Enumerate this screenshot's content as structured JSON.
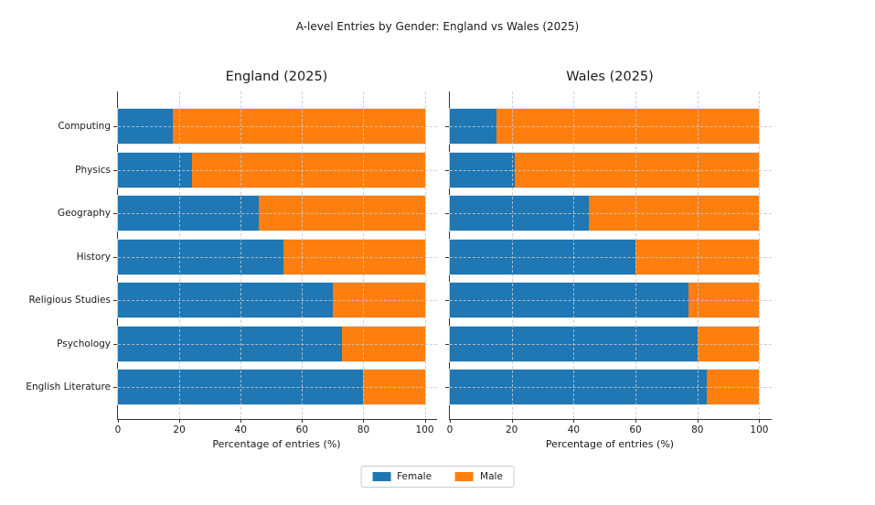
{
  "figure": {
    "title": "A-level Entries by Gender: England vs Wales (2025)",
    "background": "#ffffff",
    "text_color": "#1a1a1a"
  },
  "legend": {
    "position": "bottom-center",
    "items": [
      {
        "label": "Female",
        "color": "#1f77b4"
      },
      {
        "label": "Male",
        "color": "#ff7f0e"
      }
    ]
  },
  "chart_data": [
    {
      "type": "bar",
      "orientation": "horizontal",
      "stacked": true,
      "title": "England (2025)",
      "xlabel": "Percentage of entries (%)",
      "categories": [
        "Computing",
        "Physics",
        "Geography",
        "History",
        "Religious Studies",
        "Psychology",
        "English Literature"
      ],
      "categories_order": "top-to-bottom",
      "series": [
        {
          "name": "Female",
          "color": "#1f77b4",
          "values": [
            18,
            24,
            46,
            54,
            70,
            73,
            80
          ]
        },
        {
          "name": "Male",
          "color": "#ff7f0e",
          "values": [
            82,
            76,
            54,
            46,
            30,
            27,
            20
          ]
        }
      ],
      "xticks": [
        0,
        20,
        40,
        60,
        80,
        100
      ],
      "xlim": [
        0,
        104
      ],
      "grid": "dashed-both-axes",
      "y_tick_labels_visible": true
    },
    {
      "type": "bar",
      "orientation": "horizontal",
      "stacked": true,
      "title": "Wales (2025)",
      "xlabel": "Percentage of entries (%)",
      "categories": [
        "Computing",
        "Physics",
        "Geography",
        "History",
        "Religious Studies",
        "Psychology",
        "English Literature"
      ],
      "categories_order": "top-to-bottom",
      "series": [
        {
          "name": "Female",
          "color": "#1f77b4",
          "values": [
            15,
            21,
            45,
            60,
            77,
            80,
            83
          ]
        },
        {
          "name": "Male",
          "color": "#ff7f0e",
          "values": [
            85,
            79,
            55,
            40,
            23,
            20,
            17
          ]
        }
      ],
      "xticks": [
        0,
        20,
        40,
        60,
        80,
        100
      ],
      "xlim": [
        0,
        104
      ],
      "grid": "dashed-both-axes",
      "y_tick_labels_visible": false
    }
  ]
}
